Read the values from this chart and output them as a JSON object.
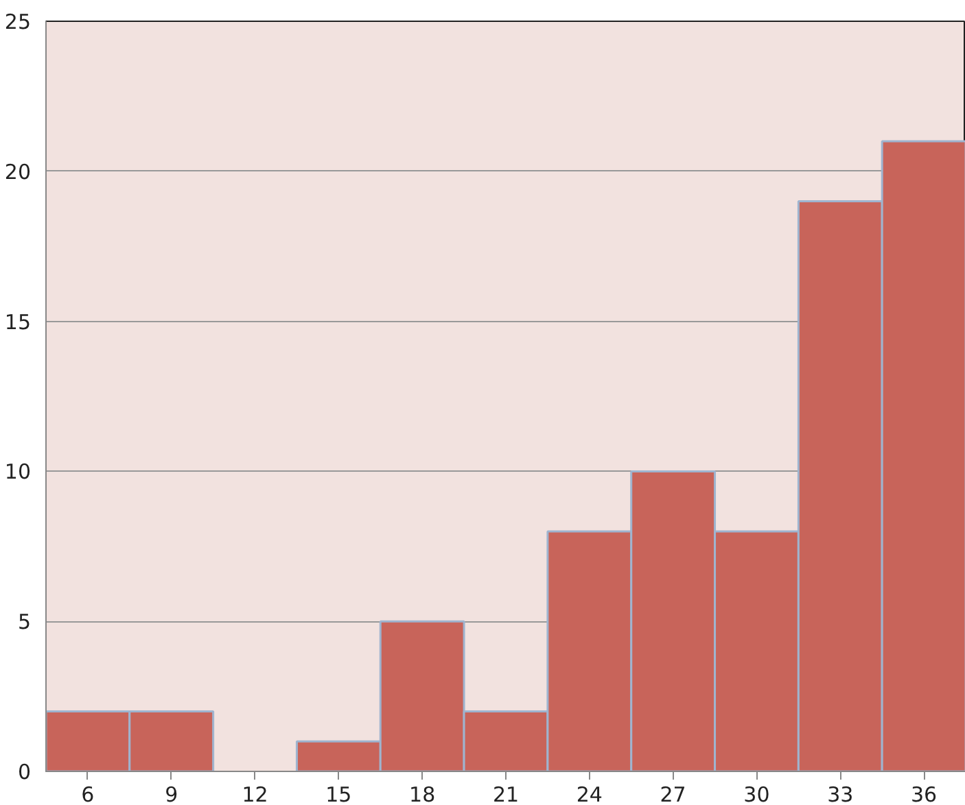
{
  "chart_data": {
    "type": "bar",
    "categories": [
      "6",
      "9",
      "12",
      "15",
      "18",
      "21",
      "24",
      "27",
      "30",
      "33",
      "36"
    ],
    "values": [
      2,
      2,
      0,
      1,
      5,
      2,
      8,
      10,
      8,
      19,
      21
    ],
    "color": "#c8645a",
    "ylim": [
      0,
      25
    ],
    "yticks": [
      0,
      5,
      10,
      15,
      20,
      25
    ],
    "grid": "y"
  }
}
